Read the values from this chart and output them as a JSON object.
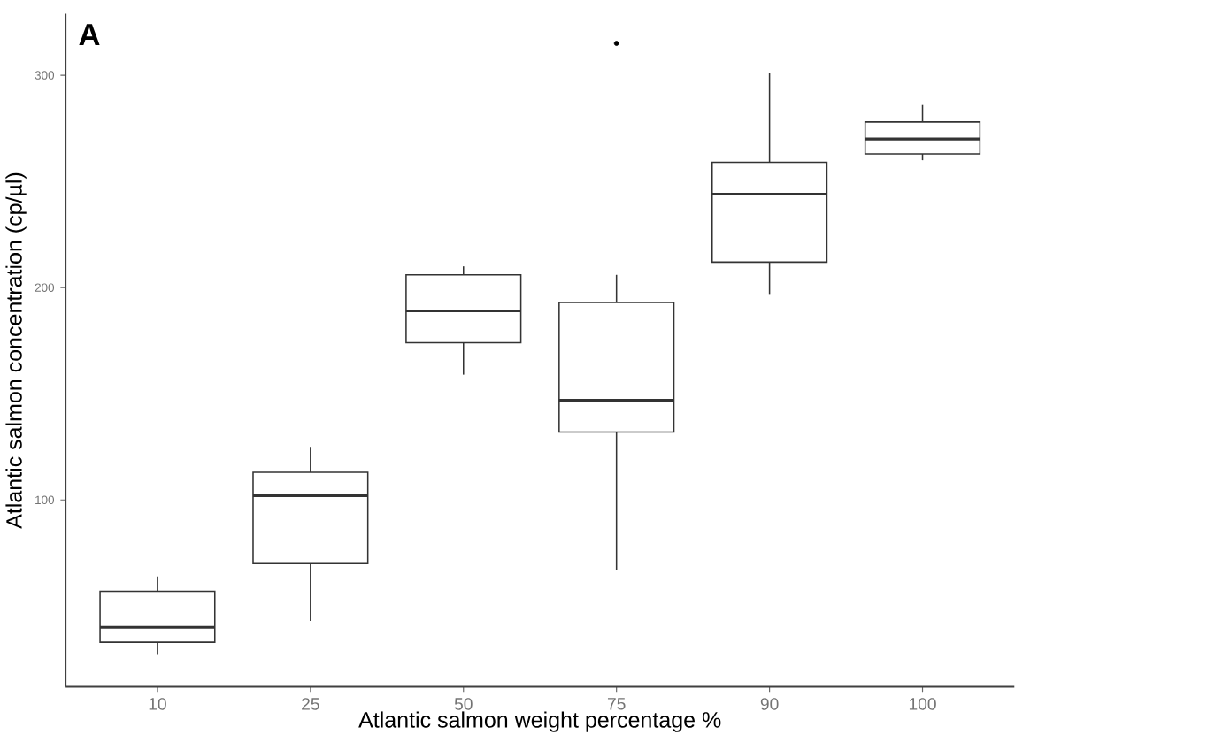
{
  "chart_data": {
    "type": "box",
    "title": "A",
    "xlabel": "Atlantic salmon weight percentage %",
    "ylabel": "Atlantic salmon concentration (cp/µl)",
    "categories": [
      "10",
      "25",
      "50",
      "75",
      "90",
      "100"
    ],
    "color": "#333333",
    "boxes": [
      {
        "low": 27,
        "q1": 33,
        "median": 40,
        "q3": 57,
        "high": 64
      },
      {
        "low": 43,
        "q1": 70,
        "median": 102,
        "q3": 113,
        "high": 125
      },
      {
        "low": 159,
        "q1": 174,
        "median": 189,
        "q3": 206,
        "high": 210
      },
      {
        "low": 67,
        "q1": 132,
        "median": 147,
        "q3": 193,
        "high": 206,
        "outliers": [
          315
        ]
      },
      {
        "low": 197,
        "q1": 212,
        "median": 244,
        "q3": 259,
        "high": 301
      },
      {
        "low": 260,
        "q1": 263,
        "median": 270,
        "q3": 278,
        "high": 286
      }
    ],
    "ylim": [
      12,
      329
    ],
    "yticks": [
      100,
      200,
      300
    ]
  }
}
